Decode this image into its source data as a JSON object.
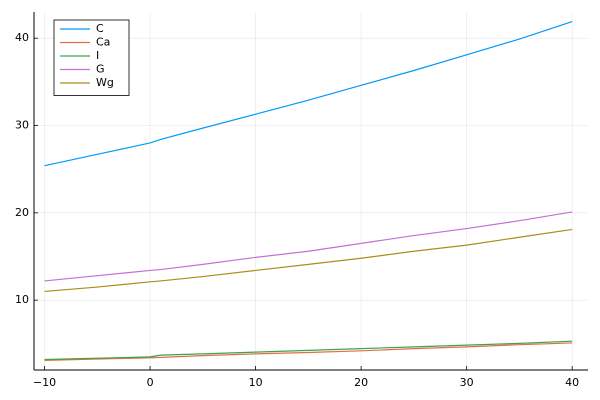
{
  "chart_data": {
    "type": "line",
    "x": [
      -10,
      -5,
      0,
      1,
      5,
      10,
      15,
      20,
      25,
      30,
      35,
      40
    ],
    "series": [
      {
        "name": "C",
        "color": "#009af9",
        "values": [
          25.4,
          26.7,
          28.0,
          28.4,
          29.7,
          31.3,
          32.9,
          34.6,
          36.3,
          38.1,
          39.9,
          41.9
        ]
      },
      {
        "name": "Ca",
        "color": "#e26f46",
        "values": [
          3.1,
          3.25,
          3.4,
          3.45,
          3.65,
          3.85,
          4.0,
          4.2,
          4.45,
          4.65,
          4.9,
          5.1
        ]
      },
      {
        "name": "I",
        "color": "#3da44d",
        "values": [
          3.2,
          3.35,
          3.5,
          3.7,
          3.85,
          4.05,
          4.25,
          4.45,
          4.65,
          4.85,
          5.05,
          5.3
        ]
      },
      {
        "name": "G",
        "color": "#c271d2",
        "values": [
          12.2,
          12.8,
          13.4,
          13.5,
          14.1,
          14.9,
          15.6,
          16.5,
          17.4,
          18.2,
          19.1,
          20.1
        ]
      },
      {
        "name": "Wg",
        "color": "#ac8d18",
        "values": [
          11.0,
          11.5,
          12.1,
          12.2,
          12.7,
          13.4,
          14.1,
          14.8,
          15.6,
          16.3,
          17.2,
          18.1
        ]
      }
    ],
    "xlim": [
      -11,
      41.5
    ],
    "ylim": [
      2,
      43
    ],
    "xticks": [
      {
        "value": -10,
        "label": "−10"
      },
      0,
      10,
      20,
      30,
      40
    ],
    "yticks": [
      10,
      20,
      30,
      40
    ],
    "grid": true,
    "legend": "top-left"
  }
}
